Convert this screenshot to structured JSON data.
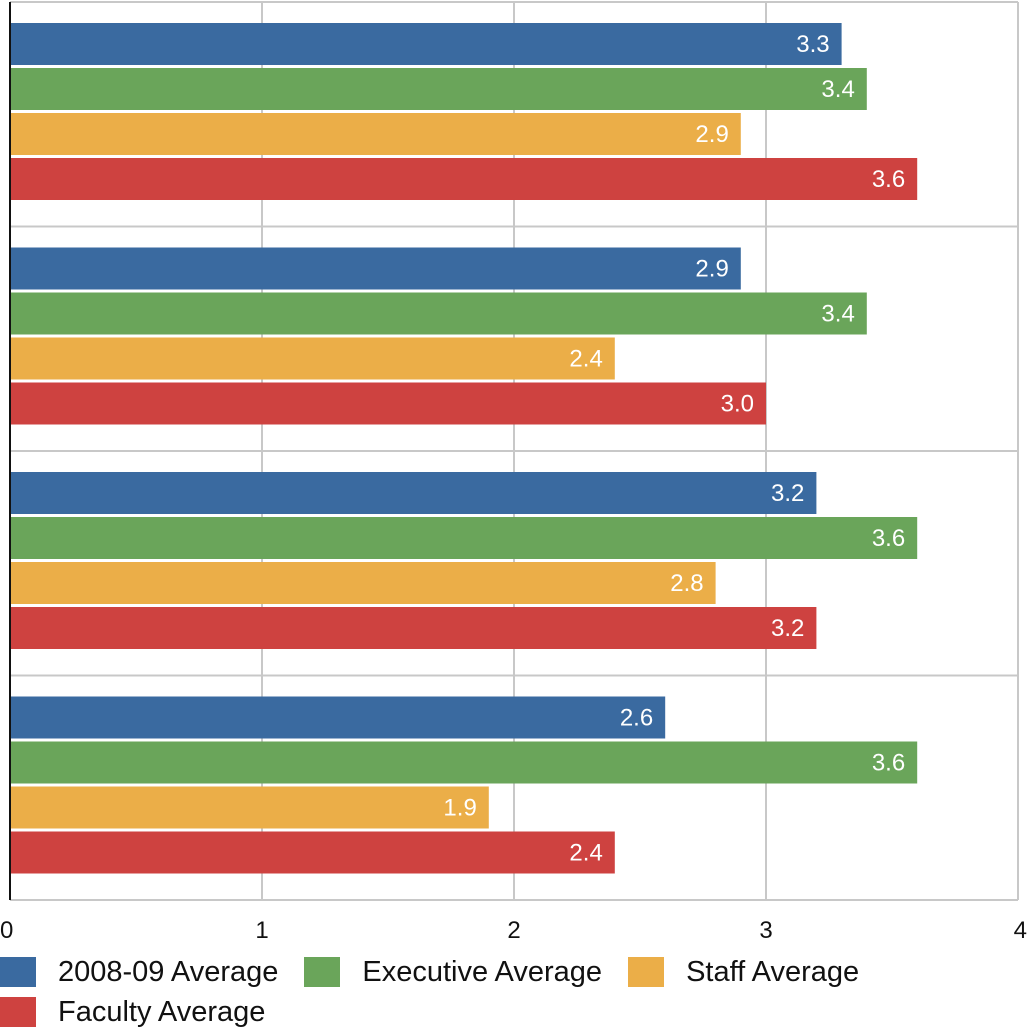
{
  "chart_data": {
    "type": "bar",
    "orientation": "horizontal",
    "title": "",
    "xlabel": "",
    "ylabel": "",
    "xlim": [
      0,
      4
    ],
    "x_ticks": [
      "0",
      "1",
      "2",
      "3",
      "4"
    ],
    "grid": true,
    "legend_position": "bottom",
    "groups": 4,
    "series": [
      {
        "name": "2008-09 Average",
        "color": "#3a6aa0",
        "values": [
          3.3,
          2.9,
          3.2,
          2.6
        ],
        "labels": [
          "3.3",
          "2.9",
          "3.2",
          "2.6"
        ]
      },
      {
        "name": "Executive Average",
        "color": "#6aa55a",
        "values": [
          3.4,
          3.4,
          3.6,
          3.6
        ],
        "labels": [
          "3.4",
          "3.4",
          "3.6",
          "3.6"
        ]
      },
      {
        "name": "Staff Average",
        "color": "#ebae48",
        "values": [
          2.9,
          2.4,
          2.8,
          1.9
        ],
        "labels": [
          "2.9",
          "2.4",
          "2.8",
          "1.9"
        ]
      },
      {
        "name": "Faculty Average",
        "color": "#ce4240",
        "values": [
          3.6,
          3.0,
          3.2,
          2.4
        ],
        "labels": [
          "3.6",
          "3.0",
          "3.2",
          "2.4"
        ]
      }
    ]
  }
}
